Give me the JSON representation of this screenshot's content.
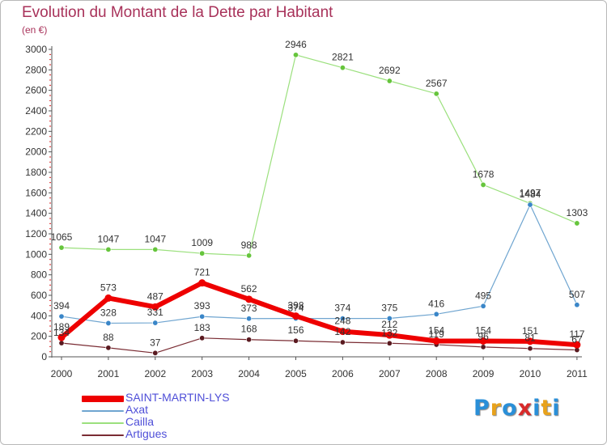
{
  "title": "Evolution du Montant de la Dette par Habitant",
  "subtitle": "(en €)",
  "logo": {
    "letters": [
      "P",
      "r",
      "o",
      "x",
      "i",
      "t",
      "i"
    ],
    "colors": [
      "#2a8fd8",
      "#e8a21c",
      "#2a8fd8",
      "#d82a2a",
      "#2a8fd8",
      "#e8a21c",
      "#2a8fd8"
    ]
  },
  "chart_data": {
    "type": "line",
    "x": [
      "2000",
      "2001",
      "2002",
      "2003",
      "2004",
      "2005",
      "2006",
      "2007",
      "2008",
      "2009",
      "2010",
      "2011"
    ],
    "ylim": [
      0,
      3000
    ],
    "yticks": [
      "0",
      "200",
      "400",
      "600",
      "800",
      "1000",
      "1200",
      "1400",
      "1600",
      "1800",
      "2000",
      "2200",
      "2400",
      "2600",
      "2800",
      "3000"
    ],
    "grid": false,
    "legend_position": "bottom-left",
    "series": [
      {
        "name": "Cailla",
        "color": "#9be07d",
        "marker": "#66c53c",
        "width": 1.2,
        "values": [
          1065,
          1047,
          1047,
          1009,
          988,
          2946,
          2821,
          2692,
          2567,
          1678,
          1497,
          1303
        ],
        "labels": [
          "1065",
          "1047",
          "1047",
          "1009",
          "988",
          "2946",
          "2821",
          "2692",
          "2567",
          "1678",
          "1497",
          "1303"
        ]
      },
      {
        "name": "Axat",
        "color": "#6fa5d0",
        "marker": "#3a86c8",
        "width": 1.2,
        "values": [
          394,
          328,
          331,
          393,
          373,
          374,
          374,
          375,
          416,
          495,
          1484,
          507
        ],
        "labels": [
          "394",
          "328",
          "331",
          "393",
          "373",
          "374",
          "374",
          "375",
          "416",
          "495",
          "1484",
          "507"
        ]
      },
      {
        "name": "Artigues",
        "color": "#7a2c33",
        "marker": "#5a1a20",
        "width": 1.2,
        "values": [
          134,
          88,
          37,
          183,
          168,
          156,
          142,
          132,
          119,
          96,
          81,
          67
        ],
        "labels": [
          "134",
          "88",
          "37",
          "183",
          "168",
          "156",
          "142",
          "132",
          "119",
          "96",
          "81",
          "67"
        ]
      },
      {
        "name": "SAINT-MARTIN-LYS",
        "color": "#ee0000",
        "marker": "#ee0000",
        "width": 6,
        "values": [
          189,
          573,
          487,
          721,
          562,
          398,
          248,
          212,
          154,
          154,
          151,
          117
        ],
        "labels": [
          "189",
          "573",
          "487",
          "721",
          "562",
          "398",
          "248",
          "212",
          "154",
          "154",
          "151",
          "117"
        ]
      }
    ],
    "legend": [
      {
        "name": "SAINT-MARTIN-LYS",
        "color": "#ee0000",
        "thickness": 8
      },
      {
        "name": "Axat",
        "color": "#6fa5d0",
        "thickness": 2
      },
      {
        "name": "Cailla",
        "color": "#9be07d",
        "thickness": 2
      },
      {
        "name": "Artigues",
        "color": "#7a2c33",
        "thickness": 2
      }
    ]
  }
}
